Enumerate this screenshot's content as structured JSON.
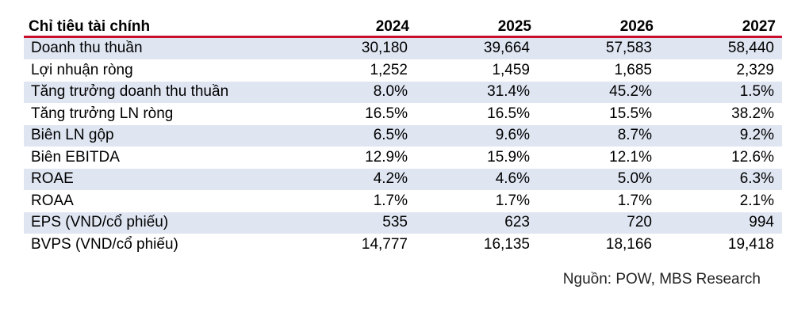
{
  "table": {
    "header": {
      "label": "Chỉ tiêu tài chính",
      "years": [
        "2024",
        "2025",
        "2026",
        "2027"
      ]
    },
    "rows": [
      {
        "label": "Doanh thu thuần",
        "values": [
          "30,180",
          "39,664",
          "57,583",
          "58,440"
        ]
      },
      {
        "label": "Lợi nhuận ròng",
        "values": [
          "1,252",
          "1,459",
          "1,685",
          "2,329"
        ]
      },
      {
        "label": "Tăng trưởng doanh thu thuần",
        "values": [
          "8.0%",
          "31.4%",
          "45.2%",
          "1.5%"
        ]
      },
      {
        "label": "Tăng trưởng LN ròng",
        "values": [
          "16.5%",
          "16.5%",
          "15.5%",
          "38.2%"
        ]
      },
      {
        "label": "Biên LN gộp",
        "values": [
          "6.5%",
          "9.6%",
          "8.7%",
          "9.2%"
        ]
      },
      {
        "label": "Biên EBITDA",
        "values": [
          "12.9%",
          "15.9%",
          "12.1%",
          "12.6%"
        ]
      },
      {
        "label": "ROAE",
        "values": [
          "4.2%",
          "4.6%",
          "5.0%",
          "6.3%"
        ]
      },
      {
        "label": "ROAA",
        "values": [
          "1.7%",
          "1.7%",
          "1.7%",
          "2.1%"
        ]
      },
      {
        "label": "EPS (VND/cổ phiếu)",
        "values": [
          "535",
          "623",
          "720",
          "994"
        ]
      },
      {
        "label": "BVPS (VND/cổ phiếu)",
        "values": [
          "14,777",
          "16,135",
          "18,166",
          "19,418"
        ]
      }
    ]
  },
  "source": "Nguồn: POW, MBS Research",
  "colors": {
    "header_rule": "#c8102e",
    "band_fill": "#dfe6f2"
  }
}
